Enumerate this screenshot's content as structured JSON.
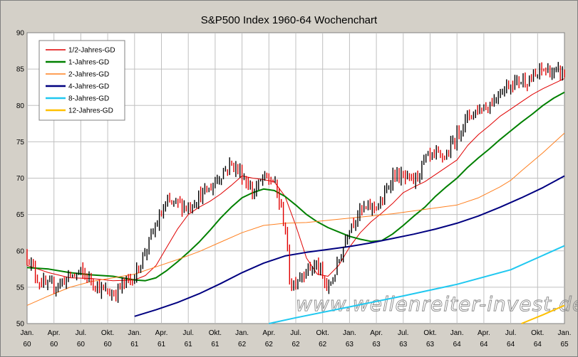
{
  "chart_data": {
    "type": "line",
    "title": "S&P500 Index 1960-64 Wochenchart",
    "watermark": "www.wellenreiter-invest.de",
    "xlabel": "",
    "ylabel": "",
    "ylim": [
      50,
      90
    ],
    "yticks": [
      50,
      55,
      60,
      65,
      70,
      75,
      80,
      85,
      90
    ],
    "xlim": [
      1960.0,
      1965.0
    ],
    "xticks": [
      {
        "x": 1960.0,
        "month": "Jan.",
        "year": "60"
      },
      {
        "x": 1960.25,
        "month": "Apr.",
        "year": "60"
      },
      {
        "x": 1960.5,
        "month": "Jul.",
        "year": "60"
      },
      {
        "x": 1960.75,
        "month": "Okt.",
        "year": "60"
      },
      {
        "x": 1961.0,
        "month": "Jan.",
        "year": "61"
      },
      {
        "x": 1961.25,
        "month": "Apr.",
        "year": "61"
      },
      {
        "x": 1961.5,
        "month": "Jul.",
        "year": "61"
      },
      {
        "x": 1961.75,
        "month": "Okt.",
        "year": "61"
      },
      {
        "x": 1962.0,
        "month": "Jan.",
        "year": "62"
      },
      {
        "x": 1962.25,
        "month": "Apr.",
        "year": "62"
      },
      {
        "x": 1962.5,
        "month": "Jul.",
        "year": "62"
      },
      {
        "x": 1962.75,
        "month": "Okt.",
        "year": "62"
      },
      {
        "x": 1963.0,
        "month": "Jan.",
        "year": "63"
      },
      {
        "x": 1963.25,
        "month": "Apr.",
        "year": "63"
      },
      {
        "x": 1963.5,
        "month": "Jul.",
        "year": "63"
      },
      {
        "x": 1963.75,
        "month": "Okt.",
        "year": "63"
      },
      {
        "x": 1964.0,
        "month": "Jan.",
        "year": "64"
      },
      {
        "x": 1964.25,
        "month": "Apr.",
        "year": "64"
      },
      {
        "x": 1964.5,
        "month": "Jul.",
        "year": "64"
      },
      {
        "x": 1964.75,
        "month": "Okt.",
        "year": "64"
      },
      {
        "x": 1965.0,
        "month": "Jan.",
        "year": "65"
      }
    ],
    "grid": true,
    "legend_position": "top-left",
    "price": {
      "style": "weekly-bars",
      "up_color": "#000000",
      "down_color": "#e00000",
      "x": [
        1960.0,
        1960.1,
        1960.2,
        1960.3,
        1960.4,
        1960.5,
        1960.6,
        1960.7,
        1960.8,
        1960.9,
        1961.0,
        1961.1,
        1961.2,
        1961.3,
        1961.4,
        1961.5,
        1961.6,
        1961.7,
        1961.8,
        1961.9,
        1962.0,
        1962.1,
        1962.2,
        1962.3,
        1962.4,
        1962.45,
        1962.5,
        1962.6,
        1962.7,
        1962.8,
        1962.9,
        1963.0,
        1963.1,
        1963.2,
        1963.3,
        1963.4,
        1963.5,
        1963.6,
        1963.7,
        1963.8,
        1963.9,
        1964.0,
        1964.1,
        1964.2,
        1964.3,
        1964.4,
        1964.5,
        1964.6,
        1964.7,
        1964.8,
        1964.9,
        1965.0
      ],
      "close": [
        59.5,
        56.0,
        55.0,
        55.5,
        56.5,
        57.0,
        56.0,
        54.5,
        54.0,
        55.5,
        56.5,
        60.0,
        63.5,
        66.5,
        66.5,
        66.0,
        67.5,
        68.5,
        70.5,
        72.0,
        70.5,
        68.0,
        70.0,
        69.5,
        63.5,
        55.0,
        56.0,
        57.5,
        58.0,
        54.5,
        58.5,
        63.5,
        65.5,
        66.0,
        66.5,
        70.5,
        70.0,
        69.5,
        72.5,
        73.0,
        73.0,
        76.0,
        78.5,
        79.5,
        80.0,
        82.0,
        83.0,
        83.5,
        83.5,
        85.0,
        84.5,
        84.5
      ],
      "lows": [
        59.5,
        55.0,
        53.5,
        54.0,
        55.5,
        55.0,
        54.5,
        53.0,
        52.5,
        54.5,
        55.5,
        59.0,
        62.5,
        65.0,
        64.5,
        65.0,
        66.5,
        67.5,
        69.5,
        71.0,
        69.0,
        67.0,
        68.5,
        68.0,
        61.5,
        52.5,
        53.0,
        55.0,
        55.5,
        52.5,
        57.0,
        62.5,
        64.5,
        65.0,
        65.5,
        69.0,
        68.0,
        68.0,
        71.0,
        72.0,
        72.0,
        75.0,
        77.5,
        78.5,
        79.0,
        81.0,
        82.0,
        82.5,
        82.5,
        84.0,
        83.0,
        83.0
      ],
      "highs": [
        60.5,
        57.0,
        56.5,
        56.5,
        57.5,
        58.0,
        57.0,
        56.0,
        55.5,
        56.5,
        57.5,
        61.0,
        65.0,
        69.0,
        67.5,
        67.5,
        68.5,
        70.0,
        72.0,
        72.5,
        71.5,
        69.5,
        71.5,
        70.5,
        65.0,
        57.0,
        58.0,
        59.5,
        60.0,
        56.5,
        60.0,
        64.5,
        67.0,
        67.5,
        67.5,
        71.5,
        71.0,
        70.5,
        73.5,
        74.0,
        74.5,
        77.5,
        79.5,
        80.5,
        81.5,
        83.0,
        84.0,
        85.0,
        85.0,
        86.5,
        86.0,
        85.5
      ]
    },
    "series": [
      {
        "name": "1/2-Jahres-GD",
        "color": "#e00000",
        "width": 1,
        "x": [
          1960.0,
          1960.2,
          1960.4,
          1960.6,
          1960.8,
          1961.0,
          1961.1,
          1961.2,
          1961.3,
          1961.4,
          1961.5,
          1961.6,
          1961.7,
          1961.8,
          1961.9,
          1962.0,
          1962.1,
          1962.2,
          1962.3,
          1962.4,
          1962.5,
          1962.6,
          1962.7,
          1962.8,
          1962.9,
          1963.0,
          1963.1,
          1963.2,
          1963.3,
          1963.4,
          1963.5,
          1963.6,
          1963.7,
          1963.8,
          1963.9,
          1964.0,
          1964.1,
          1964.2,
          1964.3,
          1964.4,
          1964.5,
          1964.6,
          1964.7,
          1964.8,
          1964.9,
          1965.0
        ],
        "values": [
          58.0,
          57.0,
          56.3,
          56.2,
          55.9,
          56.0,
          56.6,
          58.0,
          60.5,
          63.0,
          65.0,
          66.0,
          66.8,
          67.8,
          69.0,
          70.3,
          70.0,
          69.8,
          69.5,
          67.5,
          63.5,
          59.0,
          56.8,
          56.5,
          58.0,
          60.5,
          62.5,
          64.0,
          65.2,
          66.5,
          68.0,
          68.8,
          69.5,
          70.5,
          71.5,
          72.5,
          74.5,
          76.0,
          77.2,
          78.5,
          79.5,
          80.5,
          81.5,
          82.3,
          83.0,
          83.7
        ]
      },
      {
        "name": "1-Jahres-GD",
        "color": "#008000",
        "width": 2,
        "x": [
          1960.0,
          1960.2,
          1960.4,
          1960.6,
          1960.8,
          1961.0,
          1961.1,
          1961.2,
          1961.3,
          1961.4,
          1961.5,
          1961.6,
          1961.7,
          1961.8,
          1961.9,
          1962.0,
          1962.1,
          1962.2,
          1962.3,
          1962.4,
          1962.5,
          1962.6,
          1962.7,
          1962.8,
          1962.9,
          1963.0,
          1963.1,
          1963.2,
          1963.3,
          1963.4,
          1963.5,
          1963.6,
          1963.7,
          1963.8,
          1963.9,
          1964.0,
          1964.1,
          1964.2,
          1964.3,
          1964.4,
          1964.5,
          1964.6,
          1964.7,
          1964.8,
          1964.9,
          1965.0
        ],
        "values": [
          57.7,
          57.5,
          57.0,
          56.7,
          56.5,
          56.0,
          55.9,
          56.3,
          57.3,
          58.5,
          59.8,
          61.2,
          62.8,
          64.5,
          66.0,
          67.3,
          68.0,
          68.5,
          68.3,
          67.5,
          66.3,
          65.0,
          64.0,
          63.2,
          62.6,
          62.0,
          61.6,
          61.3,
          61.4,
          62.3,
          63.5,
          64.8,
          66.0,
          67.5,
          68.8,
          70.0,
          71.5,
          72.8,
          74.0,
          75.3,
          76.5,
          77.7,
          78.8,
          80.0,
          81.0,
          81.8
        ]
      },
      {
        "name": "2-Jahres-GD",
        "color": "#ff8020",
        "width": 1,
        "x": [
          1960.0,
          1960.2,
          1960.4,
          1960.6,
          1960.8,
          1961.0,
          1961.2,
          1961.4,
          1961.6,
          1961.8,
          1962.0,
          1962.2,
          1962.4,
          1962.6,
          1962.8,
          1963.0,
          1963.2,
          1963.4,
          1963.6,
          1963.8,
          1964.0,
          1964.2,
          1964.4,
          1964.5,
          1964.6,
          1964.8,
          1965.0
        ],
        "values": [
          52.5,
          53.8,
          55.0,
          55.8,
          56.3,
          56.8,
          57.8,
          58.8,
          59.9,
          61.2,
          62.5,
          63.5,
          63.8,
          63.9,
          64.2,
          64.5,
          64.8,
          65.1,
          65.5,
          65.9,
          66.3,
          67.3,
          68.8,
          69.7,
          71.0,
          73.5,
          76.2
        ]
      },
      {
        "name": "4-Jahres-GD",
        "color": "#000080",
        "width": 2,
        "x": [
          1961.0,
          1961.2,
          1961.4,
          1961.6,
          1961.8,
          1962.0,
          1962.2,
          1962.4,
          1962.6,
          1962.8,
          1963.0,
          1963.2,
          1963.4,
          1963.6,
          1963.8,
          1964.0,
          1964.2,
          1964.4,
          1964.6,
          1964.8,
          1965.0
        ],
        "values": [
          51.0,
          51.9,
          52.9,
          54.1,
          55.5,
          57.0,
          58.3,
          59.3,
          59.8,
          60.2,
          60.6,
          61.1,
          61.7,
          62.3,
          63.0,
          63.8,
          64.8,
          66.0,
          67.3,
          68.7,
          70.3
        ]
      },
      {
        "name": "8-Jahres-GD",
        "color": "#20c8f0",
        "width": 2,
        "x": [
          1962.25,
          1962.5,
          1963.0,
          1963.5,
          1964.0,
          1964.5,
          1965.0
        ],
        "values": [
          50.0,
          50.8,
          52.3,
          53.8,
          55.4,
          57.4,
          60.7
        ]
      },
      {
        "name": "12-Jahres-GD",
        "color": "#ffc000",
        "width": 2,
        "x": [
          1964.6,
          1964.8,
          1965.0
        ],
        "values": [
          50.0,
          51.2,
          52.5
        ]
      }
    ]
  }
}
